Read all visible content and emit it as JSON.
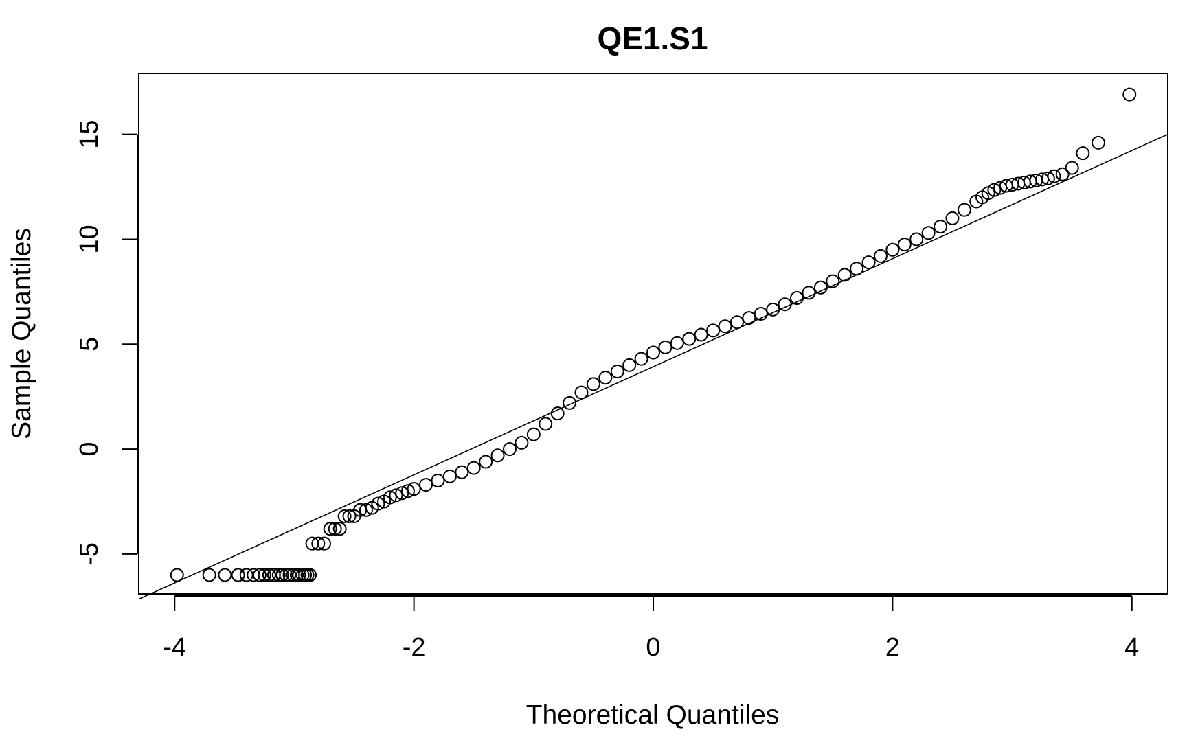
{
  "chart_data": {
    "type": "scatter",
    "title": "QE1.S1",
    "xlabel": "Theoretical Quantiles",
    "ylabel": "Sample Quantiles",
    "xlim": [
      -4.3,
      4.3
    ],
    "ylim": [
      -6.9,
      17.9
    ],
    "x_ticks": [
      -4,
      -2,
      0,
      2,
      4
    ],
    "x_tick_labels": [
      "-4",
      "-2",
      "0",
      "2",
      "4"
    ],
    "y_ticks": [
      -5,
      0,
      5,
      10,
      15
    ],
    "y_tick_labels": [
      "-5",
      "0",
      "5",
      "10",
      "15"
    ],
    "grid": false,
    "legend": "none",
    "marker": "open-circle",
    "reference_line": {
      "x": [
        -4.3,
        4.3
      ],
      "y": [
        -7.15,
        15.0
      ]
    },
    "series": [
      {
        "x": [
          -3.98,
          -3.71,
          -3.58,
          -3.47,
          -3.4,
          -3.34,
          -3.29,
          -3.25,
          -3.21,
          -3.17,
          -3.13,
          -3.1,
          -3.07,
          -3.04,
          -3.01,
          -2.98,
          -2.96,
          -2.93,
          -2.91,
          -2.89,
          -2.87,
          -2.85,
          -2.8,
          -2.75,
          -2.7,
          -2.66,
          -2.62,
          -2.58,
          -2.54,
          -2.5,
          -2.45,
          -2.4,
          -2.35,
          -2.3,
          -2.25,
          -2.2,
          -2.15,
          -2.1,
          -2.05,
          -2.0,
          -1.9,
          -1.8,
          -1.7,
          -1.6,
          -1.5,
          -1.4,
          -1.3,
          -1.2,
          -1.1,
          -1.0,
          -0.9,
          -0.8,
          -0.7,
          -0.6,
          -0.5,
          -0.4,
          -0.3,
          -0.2,
          -0.1,
          0.0,
          0.1,
          0.2,
          0.3,
          0.4,
          0.5,
          0.6,
          0.7,
          0.8,
          0.9,
          1.0,
          1.1,
          1.2,
          1.3,
          1.4,
          1.5,
          1.6,
          1.7,
          1.8,
          1.9,
          2.0,
          2.1,
          2.2,
          2.3,
          2.4,
          2.5,
          2.6,
          2.7,
          2.75,
          2.8,
          2.85,
          2.9,
          2.95,
          3.0,
          3.05,
          3.1,
          3.15,
          3.2,
          3.25,
          3.3,
          3.35,
          3.42,
          3.5,
          3.59,
          3.72,
          3.98
        ],
        "y": [
          -6.0,
          -6.0,
          -6.0,
          -6.0,
          -6.0,
          -6.0,
          -6.0,
          -6.0,
          -6.0,
          -6.0,
          -6.0,
          -6.0,
          -6.0,
          -6.0,
          -6.0,
          -6.0,
          -6.0,
          -6.0,
          -6.0,
          -6.0,
          -6.0,
          -4.5,
          -4.5,
          -4.5,
          -3.8,
          -3.8,
          -3.8,
          -3.2,
          -3.2,
          -3.2,
          -2.9,
          -2.9,
          -2.8,
          -2.6,
          -2.5,
          -2.3,
          -2.2,
          -2.1,
          -2.0,
          -1.9,
          -1.7,
          -1.5,
          -1.3,
          -1.1,
          -0.9,
          -0.6,
          -0.3,
          0.0,
          0.3,
          0.7,
          1.2,
          1.7,
          2.2,
          2.7,
          3.1,
          3.4,
          3.7,
          4.0,
          4.3,
          4.6,
          4.85,
          5.05,
          5.25,
          5.45,
          5.65,
          5.85,
          6.05,
          6.25,
          6.45,
          6.65,
          6.9,
          7.2,
          7.45,
          7.7,
          8.0,
          8.3,
          8.6,
          8.9,
          9.2,
          9.5,
          9.75,
          10.0,
          10.3,
          10.6,
          11.0,
          11.4,
          11.8,
          12.0,
          12.2,
          12.35,
          12.45,
          12.55,
          12.6,
          12.65,
          12.7,
          12.75,
          12.8,
          12.85,
          12.9,
          13.0,
          13.1,
          13.4,
          14.1,
          14.6,
          16.9
        ]
      }
    ]
  }
}
